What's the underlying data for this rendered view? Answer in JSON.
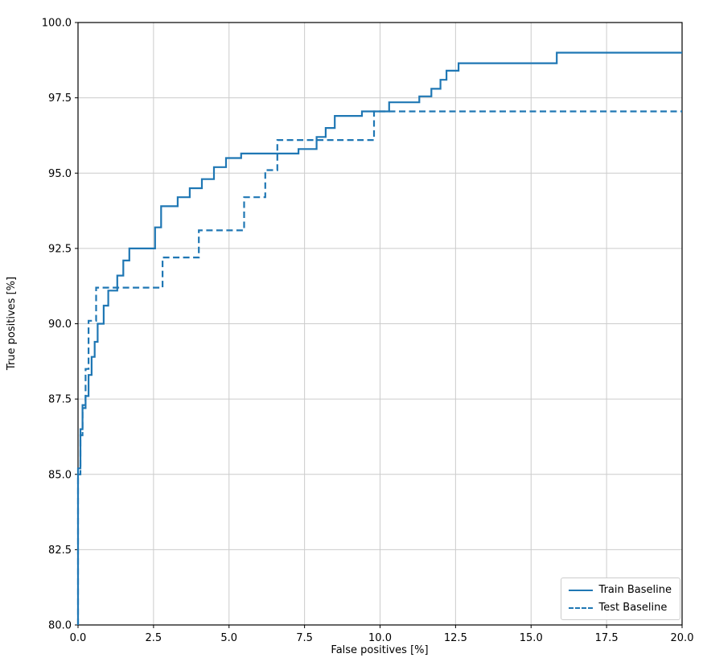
{
  "chart_data": {
    "type": "line",
    "title": "",
    "xlabel": "False positives [%]",
    "ylabel": "True positives [%]",
    "xlim": [
      0,
      20
    ],
    "ylim": [
      80,
      100
    ],
    "xticks": [
      0.0,
      2.5,
      5.0,
      7.5,
      10.0,
      12.5,
      15.0,
      17.5,
      20.0
    ],
    "yticks": [
      80.0,
      82.5,
      85.0,
      87.5,
      90.0,
      92.5,
      95.0,
      97.5,
      100.0
    ],
    "grid": true,
    "grid_color": "#cccccc",
    "line_color": "#1f77b4",
    "legend_position": "lower right",
    "series": [
      {
        "name": "Train Baseline",
        "style": "solid",
        "points": [
          [
            0.0,
            80.0
          ],
          [
            0.0,
            85.2
          ],
          [
            0.08,
            85.2
          ],
          [
            0.08,
            86.5
          ],
          [
            0.15,
            86.5
          ],
          [
            0.15,
            87.3
          ],
          [
            0.25,
            87.3
          ],
          [
            0.25,
            87.6
          ],
          [
            0.35,
            87.6
          ],
          [
            0.35,
            88.3
          ],
          [
            0.45,
            88.3
          ],
          [
            0.45,
            88.9
          ],
          [
            0.55,
            88.9
          ],
          [
            0.55,
            89.4
          ],
          [
            0.65,
            89.4
          ],
          [
            0.65,
            90.0
          ],
          [
            0.85,
            90.0
          ],
          [
            0.85,
            90.6
          ],
          [
            1.0,
            90.6
          ],
          [
            1.0,
            91.1
          ],
          [
            1.3,
            91.1
          ],
          [
            1.3,
            91.6
          ],
          [
            1.5,
            91.6
          ],
          [
            1.5,
            92.1
          ],
          [
            1.7,
            92.1
          ],
          [
            1.7,
            92.5
          ],
          [
            2.55,
            92.5
          ],
          [
            2.55,
            93.2
          ],
          [
            2.75,
            93.2
          ],
          [
            2.75,
            93.9
          ],
          [
            3.3,
            93.9
          ],
          [
            3.3,
            94.2
          ],
          [
            3.7,
            94.2
          ],
          [
            3.7,
            94.5
          ],
          [
            4.1,
            94.5
          ],
          [
            4.1,
            94.8
          ],
          [
            4.5,
            94.8
          ],
          [
            4.5,
            95.2
          ],
          [
            4.9,
            95.2
          ],
          [
            4.9,
            95.5
          ],
          [
            5.4,
            95.5
          ],
          [
            5.4,
            95.65
          ],
          [
            7.3,
            95.65
          ],
          [
            7.3,
            95.8
          ],
          [
            7.9,
            95.8
          ],
          [
            7.9,
            96.2
          ],
          [
            8.2,
            96.2
          ],
          [
            8.2,
            96.5
          ],
          [
            8.5,
            96.5
          ],
          [
            8.5,
            96.9
          ],
          [
            9.4,
            96.9
          ],
          [
            9.4,
            97.05
          ],
          [
            10.3,
            97.05
          ],
          [
            10.3,
            97.35
          ],
          [
            11.3,
            97.35
          ],
          [
            11.3,
            97.55
          ],
          [
            11.7,
            97.55
          ],
          [
            11.7,
            97.8
          ],
          [
            12.0,
            97.8
          ],
          [
            12.0,
            98.1
          ],
          [
            12.2,
            98.1
          ],
          [
            12.2,
            98.4
          ],
          [
            12.6,
            98.4
          ],
          [
            12.6,
            98.65
          ],
          [
            15.85,
            98.65
          ],
          [
            15.85,
            99.0
          ],
          [
            20.0,
            99.0
          ]
        ]
      },
      {
        "name": "Test Baseline",
        "style": "dashed",
        "points": [
          [
            0.0,
            80.0
          ],
          [
            0.0,
            85.0
          ],
          [
            0.08,
            85.0
          ],
          [
            0.08,
            86.3
          ],
          [
            0.15,
            86.3
          ],
          [
            0.15,
            87.2
          ],
          [
            0.25,
            87.2
          ],
          [
            0.25,
            88.5
          ],
          [
            0.35,
            88.5
          ],
          [
            0.35,
            90.1
          ],
          [
            0.6,
            90.1
          ],
          [
            0.6,
            91.2
          ],
          [
            2.8,
            91.2
          ],
          [
            2.8,
            92.2
          ],
          [
            4.0,
            92.2
          ],
          [
            4.0,
            93.1
          ],
          [
            5.5,
            93.1
          ],
          [
            5.5,
            94.2
          ],
          [
            6.2,
            94.2
          ],
          [
            6.2,
            95.1
          ],
          [
            6.6,
            95.1
          ],
          [
            6.6,
            96.1
          ],
          [
            9.8,
            96.1
          ],
          [
            9.8,
            97.05
          ],
          [
            20.0,
            97.05
          ]
        ]
      }
    ]
  }
}
